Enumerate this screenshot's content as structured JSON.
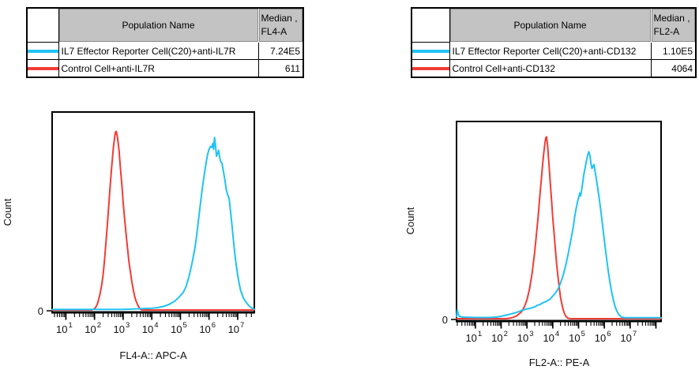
{
  "page": {
    "background": "#ffffff"
  },
  "panels": [
    {
      "table": {
        "header": {
          "population": "Population Name",
          "median_line1": "Median ,",
          "median_line2": "FL4-A"
        },
        "rows": [
          {
            "swatch_color": "#1fc3f3",
            "name": "IL7 Effector Reporter Cell(C20)+anti-IL7R",
            "median": "7.24E5"
          },
          {
            "swatch_color": "#f23b36",
            "name": "Control Cell+anti-IL7R",
            "median": "611"
          }
        ]
      }
    },
    {
      "table": {
        "header": {
          "population": "Population Name",
          "median_line1": "Median ,",
          "median_line2": "FL2-A"
        },
        "rows": [
          {
            "swatch_color": "#1fc3f3",
            "name": "IL7 Effector Reporter Cell(C20)+anti-CD132",
            "median": "1.10E5"
          },
          {
            "swatch_color": "#f23b36",
            "name": "Control Cell+anti-CD132",
            "median": "4064"
          }
        ]
      }
    }
  ],
  "chart_data": [
    {
      "type": "line",
      "title": "",
      "xlabel": "FL4-A:: APC-A",
      "ylabel": "Count",
      "xscale": "log",
      "xlim_log": [
        0.52,
        7.58
      ],
      "x_tick_decades": [
        1,
        2,
        3,
        4,
        5,
        6,
        7
      ],
      "y_zero_label": "0",
      "grid": false,
      "legend_position": "none",
      "series": [
        {
          "name": "IL7 Effector Reporter Cell(C20)+anti-IL7R",
          "color": "#1fc3f3",
          "median": "7.24E5",
          "points": [
            [
              0.52,
              0.003
            ],
            [
              3.0,
              0.003
            ],
            [
              3.5,
              0.006
            ],
            [
              4.0,
              0.009
            ],
            [
              4.2,
              0.012
            ],
            [
              4.4,
              0.018
            ],
            [
              4.6,
              0.028
            ],
            [
              4.8,
              0.045
            ],
            [
              4.95,
              0.065
            ],
            [
              5.1,
              0.09
            ],
            [
              5.2,
              0.12
            ],
            [
              5.3,
              0.17
            ],
            [
              5.4,
              0.235
            ],
            [
              5.5,
              0.31
            ],
            [
              5.55,
              0.36
            ],
            [
              5.6,
              0.42
            ],
            [
              5.65,
              0.48
            ],
            [
              5.7,
              0.54
            ],
            [
              5.75,
              0.6
            ],
            [
              5.8,
              0.655
            ],
            [
              5.85,
              0.705
            ],
            [
              5.9,
              0.75
            ],
            [
              5.95,
              0.79
            ],
            [
              6.0,
              0.815
            ],
            [
              6.05,
              0.83
            ],
            [
              6.1,
              0.825
            ],
            [
              6.13,
              0.845
            ],
            [
              6.16,
              0.815
            ],
            [
              6.19,
              0.875
            ],
            [
              6.22,
              0.84
            ],
            [
              6.26,
              0.78
            ],
            [
              6.3,
              0.795
            ],
            [
              6.33,
              0.81
            ],
            [
              6.37,
              0.775
            ],
            [
              6.4,
              0.755
            ],
            [
              6.45,
              0.745
            ],
            [
              6.5,
              0.705
            ],
            [
              6.55,
              0.66
            ],
            [
              6.6,
              0.61
            ],
            [
              6.65,
              0.585
            ],
            [
              6.7,
              0.565
            ],
            [
              6.75,
              0.5
            ],
            [
              6.8,
              0.43
            ],
            [
              6.85,
              0.355
            ],
            [
              6.9,
              0.285
            ],
            [
              6.95,
              0.225
            ],
            [
              7.0,
              0.175
            ],
            [
              7.05,
              0.135
            ],
            [
              7.1,
              0.1
            ],
            [
              7.2,
              0.06
            ],
            [
              7.3,
              0.038
            ],
            [
              7.4,
              0.02
            ],
            [
              7.5,
              0.009
            ],
            [
              7.58,
              0.004
            ]
          ]
        },
        {
          "name": "Control Cell+anti-IL7R",
          "color": "#f23b36",
          "median": "611",
          "points": [
            [
              0.52,
              0.004
            ],
            [
              1.9,
              0.004
            ],
            [
              2.0,
              0.01
            ],
            [
              2.05,
              0.02
            ],
            [
              2.1,
              0.035
            ],
            [
              2.15,
              0.06
            ],
            [
              2.2,
              0.09
            ],
            [
              2.25,
              0.13
            ],
            [
              2.3,
              0.18
            ],
            [
              2.35,
              0.26
            ],
            [
              2.4,
              0.35
            ],
            [
              2.45,
              0.44
            ],
            [
              2.5,
              0.54
            ],
            [
              2.55,
              0.64
            ],
            [
              2.6,
              0.73
            ],
            [
              2.63,
              0.78
            ],
            [
              2.66,
              0.83
            ],
            [
              2.7,
              0.875
            ],
            [
              2.73,
              0.905
            ],
            [
              2.76,
              0.91
            ],
            [
              2.8,
              0.88
            ],
            [
              2.83,
              0.845
            ],
            [
              2.86,
              0.81
            ],
            [
              2.9,
              0.73
            ],
            [
              2.93,
              0.68
            ],
            [
              2.96,
              0.63
            ],
            [
              3.0,
              0.55
            ],
            [
              3.05,
              0.47
            ],
            [
              3.1,
              0.39
            ],
            [
              3.15,
              0.32
            ],
            [
              3.2,
              0.25
            ],
            [
              3.25,
              0.2
            ],
            [
              3.3,
              0.15
            ],
            [
              3.35,
              0.11
            ],
            [
              3.4,
              0.075
            ],
            [
              3.45,
              0.05
            ],
            [
              3.5,
              0.032
            ],
            [
              3.55,
              0.018
            ],
            [
              3.6,
              0.008
            ],
            [
              3.65,
              0.004
            ],
            [
              7.58,
              0.004
            ]
          ]
        }
      ]
    },
    {
      "type": "line",
      "title": "",
      "xlabel": "FL2-A:: PE-A",
      "ylabel": "Count",
      "xscale": "log",
      "xlim_log": [
        0.27,
        8.2
      ],
      "x_tick_decades": [
        1,
        2,
        3,
        4,
        5,
        6,
        7
      ],
      "y_zero_label": "0",
      "grid": false,
      "legend_position": "none",
      "series": [
        {
          "name": "IL7 Effector Reporter Cell(C20)+anti-CD132",
          "color": "#1fc3f3",
          "median": "1.10E5",
          "points": [
            [
              0.27,
              0.01
            ],
            [
              0.3,
              0.045
            ],
            [
              0.33,
              0.025
            ],
            [
              0.38,
              0.012
            ],
            [
              0.5,
              0.008
            ],
            [
              1.0,
              0.006
            ],
            [
              1.5,
              0.006
            ],
            [
              1.8,
              0.008
            ],
            [
              2.0,
              0.012
            ],
            [
              2.2,
              0.018
            ],
            [
              2.4,
              0.025
            ],
            [
              2.6,
              0.032
            ],
            [
              2.8,
              0.042
            ],
            [
              3.0,
              0.05
            ],
            [
              3.1,
              0.052
            ],
            [
              3.2,
              0.056
            ],
            [
              3.3,
              0.06
            ],
            [
              3.4,
              0.068
            ],
            [
              3.5,
              0.072
            ],
            [
              3.6,
              0.08
            ],
            [
              3.7,
              0.085
            ],
            [
              3.8,
              0.092
            ],
            [
              3.9,
              0.1
            ],
            [
              4.0,
              0.115
            ],
            [
              4.1,
              0.13
            ],
            [
              4.2,
              0.15
            ],
            [
              4.3,
              0.18
            ],
            [
              4.4,
              0.22
            ],
            [
              4.5,
              0.27
            ],
            [
              4.6,
              0.33
            ],
            [
              4.7,
              0.4
            ],
            [
              4.8,
              0.47
            ],
            [
              4.85,
              0.52
            ],
            [
              4.9,
              0.555
            ],
            [
              4.95,
              0.59
            ],
            [
              5.0,
              0.615
            ],
            [
              5.05,
              0.64
            ],
            [
              5.08,
              0.625
            ],
            [
              5.12,
              0.655
            ],
            [
              5.16,
              0.69
            ],
            [
              5.2,
              0.73
            ],
            [
              5.25,
              0.765
            ],
            [
              5.3,
              0.8
            ],
            [
              5.35,
              0.83
            ],
            [
              5.4,
              0.85
            ],
            [
              5.44,
              0.83
            ],
            [
              5.48,
              0.79
            ],
            [
              5.52,
              0.765
            ],
            [
              5.56,
              0.775
            ],
            [
              5.6,
              0.785
            ],
            [
              5.64,
              0.75
            ],
            [
              5.68,
              0.72
            ],
            [
              5.72,
              0.685
            ],
            [
              5.76,
              0.65
            ],
            [
              5.8,
              0.615
            ],
            [
              5.85,
              0.565
            ],
            [
              5.9,
              0.51
            ],
            [
              5.95,
              0.455
            ],
            [
              6.0,
              0.4
            ],
            [
              6.05,
              0.345
            ],
            [
              6.1,
              0.295
            ],
            [
              6.15,
              0.245
            ],
            [
              6.2,
              0.2
            ],
            [
              6.25,
              0.16
            ],
            [
              6.3,
              0.125
            ],
            [
              6.35,
              0.095
            ],
            [
              6.4,
              0.07
            ],
            [
              6.45,
              0.05
            ],
            [
              6.5,
              0.035
            ],
            [
              6.55,
              0.024
            ],
            [
              6.6,
              0.016
            ],
            [
              6.65,
              0.01
            ],
            [
              6.7,
              0.007
            ],
            [
              6.8,
              0.005
            ],
            [
              8.2,
              0.005
            ]
          ]
        },
        {
          "name": "Control Cell+anti-CD132",
          "color": "#f23b36",
          "median": "4064",
          "points": [
            [
              0.27,
              0.004
            ],
            [
              2.2,
              0.004
            ],
            [
              2.4,
              0.008
            ],
            [
              2.6,
              0.018
            ],
            [
              2.8,
              0.04
            ],
            [
              2.9,
              0.065
            ],
            [
              3.0,
              0.1
            ],
            [
              3.1,
              0.155
            ],
            [
              3.2,
              0.235
            ],
            [
              3.3,
              0.345
            ],
            [
              3.35,
              0.41
            ],
            [
              3.4,
              0.475
            ],
            [
              3.45,
              0.55
            ],
            [
              3.5,
              0.63
            ],
            [
              3.55,
              0.7
            ],
            [
              3.6,
              0.78
            ],
            [
              3.65,
              0.845
            ],
            [
              3.7,
              0.9
            ],
            [
              3.73,
              0.925
            ],
            [
              3.76,
              0.93
            ],
            [
              3.8,
              0.885
            ],
            [
              3.85,
              0.8
            ],
            [
              3.9,
              0.7
            ],
            [
              3.95,
              0.615
            ],
            [
              4.0,
              0.52
            ],
            [
              4.05,
              0.44
            ],
            [
              4.1,
              0.36
            ],
            [
              4.15,
              0.285
            ],
            [
              4.2,
              0.22
            ],
            [
              4.25,
              0.165
            ],
            [
              4.3,
              0.115
            ],
            [
              4.35,
              0.08
            ],
            [
              4.4,
              0.052
            ],
            [
              4.45,
              0.032
            ],
            [
              4.5,
              0.018
            ],
            [
              4.55,
              0.01
            ],
            [
              4.6,
              0.006
            ],
            [
              4.7,
              0.004
            ],
            [
              8.2,
              0.004
            ]
          ]
        }
      ]
    }
  ]
}
